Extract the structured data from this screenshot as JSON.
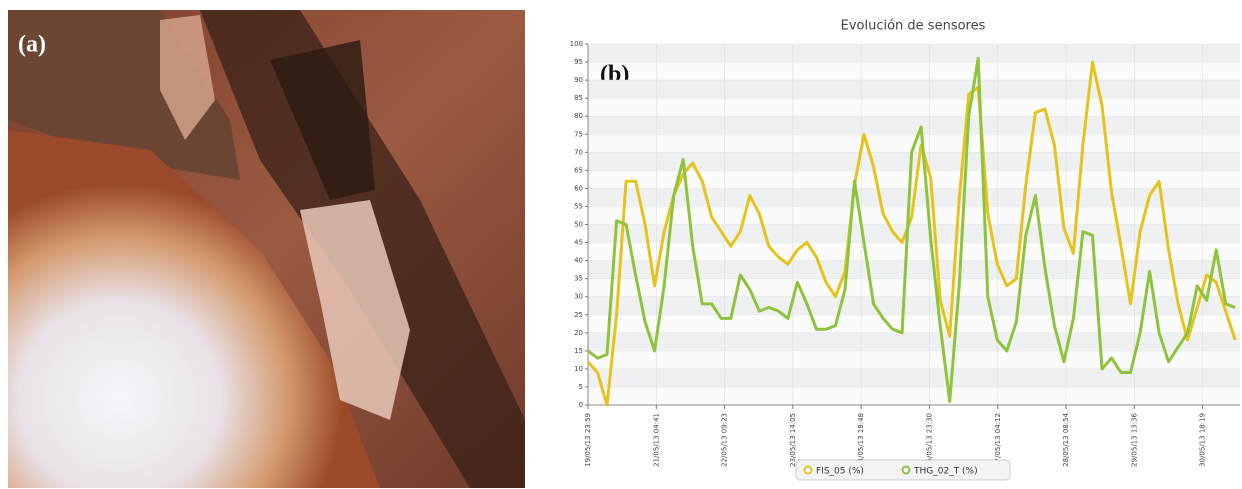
{
  "panel_labels": [
    "(a)",
    "(b)"
  ],
  "chart_data": {
    "type": "line",
    "title": "Evolución de sensores",
    "x": [
      0,
      4,
      8,
      12,
      16,
      20,
      24,
      28,
      32,
      36,
      40,
      44,
      48,
      52,
      56,
      60,
      64,
      68,
      72,
      76,
      80,
      84,
      88,
      92,
      96,
      100,
      104,
      108,
      112,
      116,
      120,
      124,
      128,
      132,
      136,
      140,
      144,
      148,
      152,
      156,
      160,
      164,
      168,
      172,
      176,
      180,
      184,
      188,
      192,
      196,
      200,
      204,
      208,
      212,
      216,
      220,
      224,
      228,
      232,
      236,
      240,
      244,
      248,
      252,
      256,
      260,
      264,
      268,
      272
    ],
    "series": [
      {
        "name": "FIS_05 (%)",
        "color": "#e6c31c",
        "values": [
          12,
          9,
          0,
          25,
          62,
          62,
          50,
          33,
          48,
          58,
          64,
          67,
          62,
          52,
          48,
          44,
          48,
          58,
          53,
          44,
          41,
          39,
          43,
          45,
          41,
          34,
          30,
          37,
          61,
          75,
          66,
          53,
          48,
          45,
          52,
          72,
          63,
          29,
          19,
          57,
          86,
          88,
          53,
          39,
          33,
          35,
          61,
          81,
          82,
          72,
          49,
          42,
          72,
          95,
          83,
          59,
          44,
          28,
          48,
          58,
          62,
          43,
          28,
          18,
          27,
          36,
          34,
          26,
          18
        ]
      },
      {
        "name": "THG_02_T (%)",
        "color": "#8dc43c",
        "values": [
          15,
          13,
          14,
          51,
          50,
          36,
          23,
          15,
          33,
          58,
          68,
          44,
          28,
          28,
          24,
          24,
          36,
          32,
          26,
          27,
          26,
          24,
          34,
          28,
          21,
          21,
          22,
          32,
          62,
          45,
          28,
          24,
          21,
          20,
          70,
          77,
          46,
          22,
          1,
          33,
          80,
          96,
          30,
          18,
          15,
          23,
          47,
          58,
          38,
          22,
          12,
          24,
          48,
          47,
          10,
          13,
          9,
          9,
          20,
          37,
          20,
          12,
          16,
          20,
          33,
          29,
          43,
          28,
          27
        ]
      }
    ],
    "xlim": [
      0,
      274
    ],
    "xticks": [
      {
        "value": 0,
        "label": "19/05/13 23:59"
      },
      {
        "value": 28.7,
        "label": "21/05/13 04:41"
      },
      {
        "value": 57.4,
        "label": "22/05/13 09:23"
      },
      {
        "value": 86.1,
        "label": "23/05/13 14:05"
      },
      {
        "value": 114.8,
        "label": "24/05/13 18:48"
      },
      {
        "value": 143.5,
        "label": "25/05/13 23:30"
      },
      {
        "value": 172.2,
        "label": "27/05/13 04:12"
      },
      {
        "value": 200.9,
        "label": "28/05/13 08:54"
      },
      {
        "value": 229.6,
        "label": "29/05/13 13:36"
      },
      {
        "value": 258.3,
        "label": "30/05/13 18:19"
      }
    ],
    "ylim": [
      0,
      100
    ],
    "yticks": [
      0,
      5,
      10,
      15,
      20,
      25,
      30,
      35,
      40,
      45,
      50,
      55,
      60,
      65,
      70,
      75,
      80,
      85,
      90,
      95,
      100
    ],
    "grid": true
  }
}
